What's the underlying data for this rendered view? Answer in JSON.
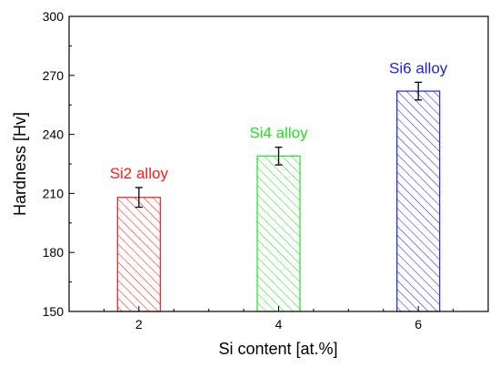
{
  "chart_data": {
    "type": "bar",
    "xlabel": "Si content [at.%]",
    "ylabel": "Hardness [Hv]",
    "ylim": [
      150,
      300
    ],
    "yticks": [
      "150",
      "180",
      "210",
      "240",
      "270",
      "300"
    ],
    "categories": [
      "2",
      "4",
      "6"
    ],
    "values": [
      208,
      229,
      262
    ],
    "errors": [
      5,
      4.5,
      4.5
    ],
    "bar_labels": [
      "Si2 alloy",
      "Si4 alloy",
      "Si6 alloy"
    ],
    "colors": [
      "#ff1a1a",
      "#22e022",
      "#2222e0"
    ],
    "fill_pattern": "diagonal-hatch",
    "grid": false,
    "legend": "none"
  }
}
